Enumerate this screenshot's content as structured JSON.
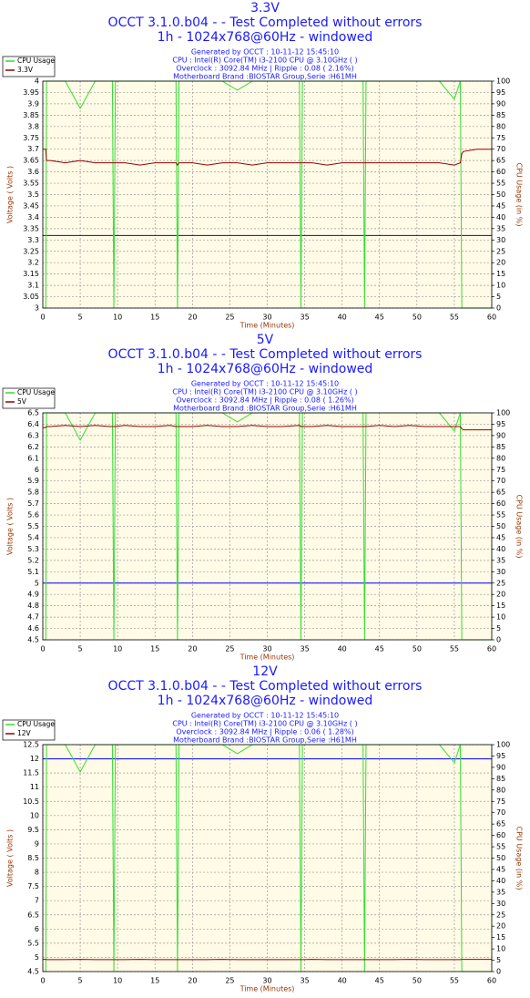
{
  "chart_data": [
    {
      "type": "line",
      "title": "3.3V",
      "subtitle": [
        "OCCT 3.1.0.b04 -  - Test Completed without errors",
        "1h - 1024x768@60Hz - windowed"
      ],
      "info": [
        "Generated by OCCT : 10-11-12 15:45:10",
        "CPU : Intel(R) Core(TM) i3-2100 CPU @ 3.10GHz (  )",
        "Overclock : 3092.84 MHz | Ripple : 0.08 ( 2.16%)",
        "Motherboard Brand :BIOSTAR Group,Serie :H61MH"
      ],
      "xlabel": "Time (Minutes)",
      "ylabel": "Voltage ( Volts )",
      "y2label": "CPU Usage (in %)",
      "legend": "top-left",
      "grid": true,
      "x": [
        0,
        0.4,
        0.5,
        0.7,
        1,
        3,
        5,
        7,
        9,
        9.3,
        9.5,
        9.7,
        11,
        13,
        15,
        17,
        17.8,
        18,
        18.2,
        20,
        22,
        24,
        26,
        28,
        30,
        32,
        34.3,
        34.5,
        34.7,
        36,
        38,
        40,
        42,
        42.8,
        43,
        43.2,
        45,
        47,
        49,
        51,
        53,
        55,
        55.8,
        56,
        56.2,
        58,
        60
      ],
      "series": [
        {
          "name": "CPU Usage",
          "color": "#33dd33",
          "axis": "y2",
          "values": [
            0,
            0,
            100,
            100,
            100,
            100,
            88,
            100,
            100,
            100,
            0,
            100,
            100,
            100,
            100,
            100,
            100,
            0,
            100,
            100,
            100,
            100,
            96,
            100,
            100,
            100,
            100,
            0,
            100,
            100,
            100,
            100,
            100,
            100,
            0,
            100,
            100,
            100,
            100,
            100,
            100,
            92,
            100,
            0,
            0,
            0,
            0
          ]
        },
        {
          "name": "3.3V",
          "color": "#990000",
          "values": [
            3.7,
            3.7,
            3.65,
            3.65,
            3.65,
            3.64,
            3.65,
            3.64,
            3.64,
            3.64,
            3.64,
            3.64,
            3.64,
            3.63,
            3.64,
            3.64,
            3.64,
            3.63,
            3.64,
            3.64,
            3.63,
            3.64,
            3.64,
            3.63,
            3.64,
            3.64,
            3.64,
            3.64,
            3.64,
            3.64,
            3.63,
            3.64,
            3.64,
            3.64,
            3.64,
            3.64,
            3.64,
            3.64,
            3.64,
            3.64,
            3.64,
            3.63,
            3.64,
            3.68,
            3.69,
            3.7,
            3.7
          ]
        }
      ],
      "hline": {
        "value": 3.32,
        "color": "#0000ff"
      },
      "xlim": [
        0,
        60
      ],
      "xticks": [
        0,
        5,
        10,
        15,
        20,
        25,
        30,
        35,
        40,
        45,
        50,
        55,
        60
      ],
      "ylim": [
        3,
        4
      ],
      "yticks": [
        3,
        3.05,
        3.1,
        3.15,
        3.2,
        3.25,
        3.3,
        3.35,
        3.4,
        3.45,
        3.5,
        3.55,
        3.6,
        3.65,
        3.7,
        3.75,
        3.8,
        3.85,
        3.9,
        3.95,
        4
      ],
      "y2lim": [
        0,
        100
      ],
      "y2ticks": [
        0,
        5,
        10,
        15,
        20,
        25,
        30,
        35,
        40,
        45,
        50,
        55,
        60,
        65,
        70,
        75,
        80,
        85,
        90,
        95,
        100
      ]
    },
    {
      "type": "line",
      "title": "5V",
      "subtitle": [
        "OCCT 3.1.0.b04 -  - Test Completed without errors",
        "1h - 1024x768@60Hz - windowed"
      ],
      "info": [
        "Generated by OCCT : 10-11-12 15:45:10",
        "CPU : Intel(R) Core(TM) i3-2100 CPU @ 3.10GHz (  )",
        "Overclock : 3092.84 MHz | Ripple : 0.08 ( 1.26%)",
        "Motherboard Brand :BIOSTAR Group,Serie :H61MH"
      ],
      "xlabel": "Time (Minutes)",
      "ylabel": "Voltage ( Volts )",
      "y2label": "CPU Usage (in %)",
      "legend": "top-left",
      "grid": true,
      "x": [
        0,
        0.4,
        0.5,
        0.7,
        1,
        3,
        5,
        7,
        9,
        9.3,
        9.5,
        9.7,
        11,
        13,
        15,
        17,
        17.8,
        18,
        18.2,
        20,
        22,
        24,
        26,
        28,
        30,
        32,
        34.3,
        34.5,
        34.7,
        36,
        38,
        40,
        42,
        42.8,
        43,
        43.2,
        45,
        47,
        49,
        51,
        53,
        55,
        55.8,
        56,
        56.2,
        58,
        60
      ],
      "series": [
        {
          "name": "CPU Usage",
          "color": "#33dd33",
          "axis": "y2",
          "values": [
            0,
            0,
            100,
            100,
            100,
            100,
            88,
            100,
            100,
            100,
            0,
            100,
            100,
            100,
            100,
            100,
            100,
            0,
            100,
            100,
            100,
            100,
            96,
            100,
            100,
            100,
            100,
            0,
            100,
            100,
            100,
            100,
            100,
            100,
            0,
            100,
            100,
            100,
            100,
            100,
            100,
            92,
            100,
            0,
            0,
            0,
            0
          ]
        },
        {
          "name": "5V",
          "color": "#990000",
          "values": [
            6.37,
            6.37,
            6.38,
            6.38,
            6.38,
            6.39,
            6.38,
            6.39,
            6.38,
            6.38,
            6.38,
            6.38,
            6.39,
            6.38,
            6.38,
            6.39,
            6.38,
            6.38,
            6.38,
            6.38,
            6.39,
            6.38,
            6.38,
            6.39,
            6.38,
            6.38,
            6.39,
            6.38,
            6.38,
            6.38,
            6.39,
            6.38,
            6.38,
            6.38,
            6.38,
            6.38,
            6.39,
            6.38,
            6.39,
            6.38,
            6.38,
            6.38,
            6.38,
            6.36,
            6.35,
            6.35,
            6.35
          ]
        }
      ],
      "hline": {
        "value": 5,
        "color": "#0000ff"
      },
      "xlim": [
        0,
        60
      ],
      "xticks": [
        0,
        5,
        10,
        15,
        20,
        25,
        30,
        35,
        40,
        45,
        50,
        55,
        60
      ],
      "ylim": [
        4.5,
        6.5
      ],
      "yticks": [
        4.5,
        4.6,
        4.7,
        4.8,
        4.9,
        5,
        5.1,
        5.2,
        5.3,
        5.4,
        5.5,
        5.6,
        5.7,
        5.8,
        5.9,
        6,
        6.1,
        6.2,
        6.3,
        6.4,
        6.5
      ],
      "y2lim": [
        0,
        100
      ],
      "y2ticks": [
        0,
        5,
        10,
        15,
        20,
        25,
        30,
        35,
        40,
        45,
        50,
        55,
        60,
        65,
        70,
        75,
        80,
        85,
        90,
        95,
        100
      ]
    },
    {
      "type": "line",
      "title": "12V",
      "subtitle": [
        "OCCT 3.1.0.b04 -  - Test Completed without errors",
        "1h - 1024x768@60Hz - windowed"
      ],
      "info": [
        "Generated by OCCT : 10-11-12 15:45:10",
        "CPU : Intel(R) Core(TM) i3-2100 CPU @ 3.10GHz (  )",
        "Overclock : 3092.84 MHz | Ripple : 0.06 ( 1.28%)",
        "Motherboard Brand :BIOSTAR Group,Serie :H61MH"
      ],
      "xlabel": "Time (Minutes)",
      "ylabel": "Voltage ( Volts )",
      "y2label": "CPU Usage (in %)",
      "legend": "top-left",
      "grid": true,
      "x": [
        0,
        0.4,
        0.5,
        0.7,
        1,
        3,
        5,
        7,
        9,
        9.3,
        9.5,
        9.7,
        11,
        13,
        15,
        17,
        17.8,
        18,
        18.2,
        20,
        22,
        24,
        26,
        28,
        30,
        32,
        34.3,
        34.5,
        34.7,
        36,
        38,
        40,
        42,
        42.8,
        43,
        43.2,
        45,
        47,
        49,
        51,
        53,
        55,
        55.8,
        56,
        56.2,
        58,
        60
      ],
      "series": [
        {
          "name": "CPU Usage",
          "color": "#33dd33",
          "axis": "y2",
          "values": [
            0,
            0,
            100,
            100,
            100,
            100,
            88,
            100,
            100,
            100,
            0,
            100,
            100,
            100,
            100,
            100,
            100,
            0,
            100,
            100,
            100,
            100,
            96,
            100,
            100,
            100,
            100,
            0,
            100,
            100,
            100,
            100,
            100,
            100,
            0,
            100,
            100,
            100,
            100,
            100,
            100,
            92,
            100,
            0,
            0,
            0,
            0
          ]
        },
        {
          "name": "12V",
          "color": "#990000",
          "values": [
            4.93,
            4.93,
            4.92,
            4.92,
            4.92,
            4.92,
            4.93,
            4.92,
            4.92,
            4.92,
            4.92,
            4.92,
            4.92,
            4.93,
            4.92,
            4.92,
            4.92,
            4.92,
            4.92,
            4.92,
            4.92,
            4.93,
            4.92,
            4.92,
            4.92,
            4.92,
            4.92,
            4.92,
            4.92,
            4.93,
            4.92,
            4.92,
            4.92,
            4.92,
            4.92,
            4.92,
            4.92,
            4.92,
            4.93,
            4.92,
            4.92,
            4.92,
            4.92,
            4.93,
            4.93,
            4.93,
            4.93
          ]
        }
      ],
      "hline": {
        "value": 12,
        "color": "#0000ff"
      },
      "xlim": [
        0,
        60
      ],
      "xticks": [
        0,
        5,
        10,
        15,
        20,
        25,
        30,
        35,
        40,
        45,
        50,
        55,
        60
      ],
      "ylim": [
        4.5,
        12.5
      ],
      "yticks": [
        4.5,
        5,
        5.5,
        6,
        6.5,
        7,
        7.5,
        8,
        8.5,
        9,
        9.5,
        10,
        10.5,
        11,
        11.5,
        12,
        12.5
      ],
      "y2lim": [
        0,
        100
      ],
      "y2ticks": [
        0,
        5,
        10,
        15,
        20,
        25,
        30,
        35,
        40,
        45,
        50,
        55,
        60,
        65,
        70,
        75,
        80,
        85,
        90,
        95,
        100
      ]
    }
  ]
}
